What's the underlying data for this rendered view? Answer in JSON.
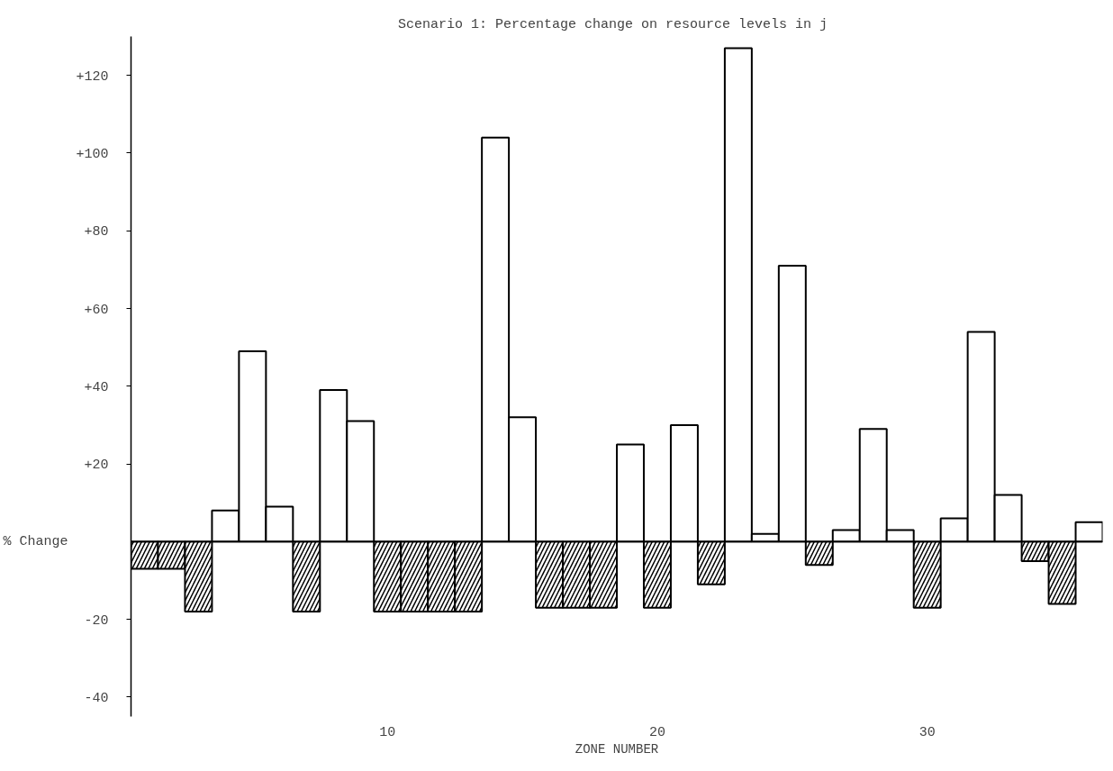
{
  "chart_data": {
    "type": "bar",
    "title": "Scenario 1:  Percentage change on resource levels in j",
    "xlabel": "ZONE NUMBER",
    "ylabel": "% Change",
    "x": [
      1,
      2,
      3,
      4,
      5,
      6,
      7,
      8,
      9,
      10,
      11,
      12,
      13,
      14,
      15,
      16,
      17,
      18,
      19,
      20,
      21,
      22,
      23,
      24,
      25,
      26,
      27,
      28,
      29,
      30,
      31,
      32,
      33,
      34,
      35,
      36
    ],
    "values": [
      -7,
      -7,
      -18,
      8,
      49,
      9,
      -18,
      39,
      31,
      -18,
      -18,
      -18,
      -18,
      104,
      32,
      -17,
      -17,
      -17,
      25,
      -17,
      30,
      -11,
      127,
      2,
      71,
      -6,
      3,
      29,
      3,
      -17,
      6,
      54,
      12,
      -5,
      -16,
      5
    ],
    "color": "#ffffff",
    "xlim": [
      0.5,
      36.5
    ],
    "xticks": [
      10,
      20,
      30
    ],
    "ylim": [
      -45,
      130
    ],
    "yticks": [
      {
        "value": -40,
        "label": "-40"
      },
      {
        "value": -20,
        "label": "-20"
      },
      {
        "value": 20,
        "label": "+20"
      },
      {
        "value": 40,
        "label": "+40"
      },
      {
        "value": 60,
        "label": "+60"
      },
      {
        "value": 80,
        "label": "+80"
      },
      {
        "value": 100,
        "label": "+100"
      },
      {
        "value": 120,
        "label": "+120"
      }
    ],
    "grid": false
  }
}
